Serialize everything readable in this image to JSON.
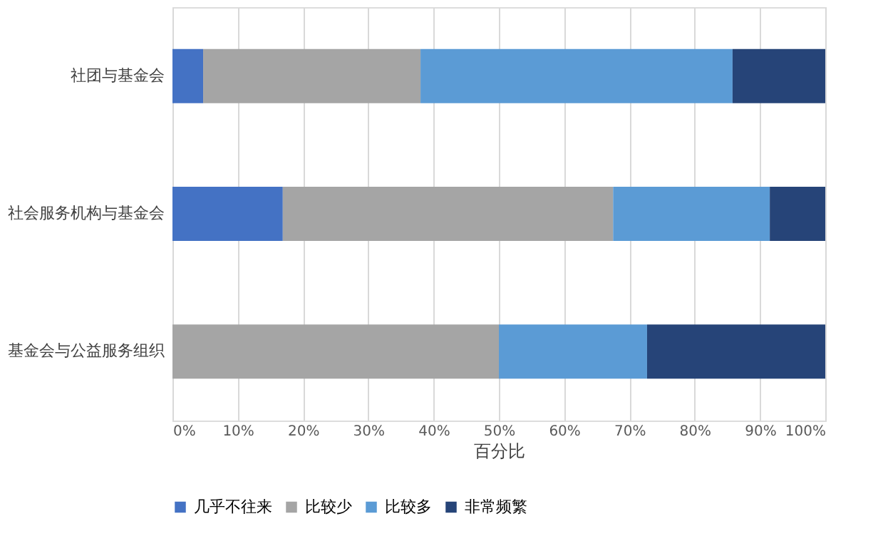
{
  "chart_data": {
    "type": "bar",
    "orientation": "horizontal",
    "stacked": true,
    "categories": [
      "社团与基金会",
      "社会服务机构与基金会",
      "基金会与公益服务组织"
    ],
    "series": [
      {
        "name": "几乎不往来",
        "color": "#4472c4",
        "values": [
          4.7,
          16.9,
          0
        ]
      },
      {
        "name": "比较少",
        "color": "#a5a5a5",
        "values": [
          33.3,
          50.6,
          50.0
        ]
      },
      {
        "name": "比较多",
        "color": "#5b9bd5",
        "values": [
          47.8,
          24.0,
          22.7
        ]
      },
      {
        "name": "非常频繁",
        "color": "#264478",
        "values": [
          14.2,
          8.5,
          27.3
        ]
      }
    ],
    "xlabel": "百分比",
    "xlim": [
      0,
      100
    ],
    "xticks": [
      {
        "value": 0,
        "label": "0%"
      },
      {
        "value": 10,
        "label": "10%"
      },
      {
        "value": 20,
        "label": "20%"
      },
      {
        "value": 30,
        "label": "30%"
      },
      {
        "value": 40,
        "label": "40%"
      },
      {
        "value": 50,
        "label": "50%"
      },
      {
        "value": 60,
        "label": "60%"
      },
      {
        "value": 70,
        "label": "70%"
      },
      {
        "value": 80,
        "label": "80%"
      },
      {
        "value": 90,
        "label": "90%"
      },
      {
        "value": 100,
        "label": "100%"
      }
    ],
    "grid": "x",
    "legend": "bottom"
  }
}
